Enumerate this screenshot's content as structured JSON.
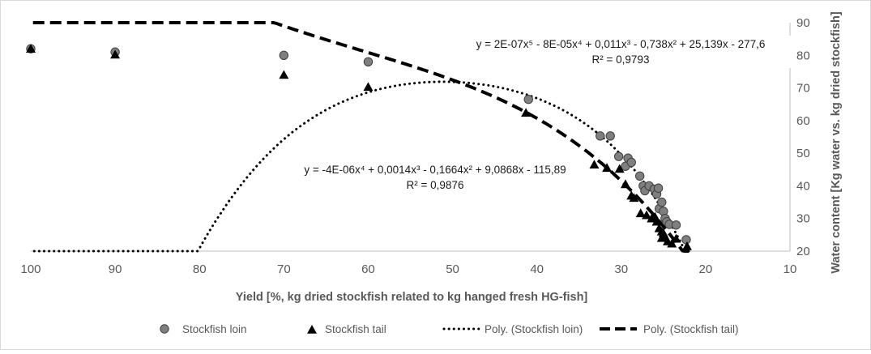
{
  "chart_data": {
    "type": "scatter",
    "xlabel": "Yield [%, kg dried stockfish related to kg hanged fresh HG-fish]",
    "ylabel": "Water content [Kg water vs. kg dried stockfish]",
    "xlim": [
      10,
      100
    ],
    "x_reversed": true,
    "ylim": [
      20,
      90
    ],
    "x_ticks": [
      "100",
      "90",
      "80",
      "70",
      "60",
      "50",
      "40",
      "30",
      "20",
      "10"
    ],
    "y_ticks": [
      "90",
      "80",
      "70",
      "60",
      "50",
      "40",
      "30",
      "20"
    ],
    "grid": false,
    "legend_position": "bottom",
    "series": [
      {
        "name": "Stockfish loin",
        "marker": "circle",
        "color": "#7f7f7f",
        "points": [
          [
            100,
            82
          ],
          [
            90,
            81
          ],
          [
            70,
            80
          ],
          [
            60,
            78
          ],
          [
            41,
            66.5
          ],
          [
            32.5,
            55.3
          ],
          [
            31.3,
            55.3
          ],
          [
            30.3,
            49
          ],
          [
            29.5,
            46
          ],
          [
            29.2,
            48.5
          ],
          [
            28.8,
            47.2
          ],
          [
            27.8,
            43
          ],
          [
            27.4,
            40
          ],
          [
            27.2,
            38.5
          ],
          [
            26.7,
            40
          ],
          [
            26.1,
            39
          ],
          [
            25.8,
            37.5
          ],
          [
            25.6,
            39.3
          ],
          [
            25.5,
            33
          ],
          [
            25.2,
            35
          ],
          [
            25,
            32.2
          ],
          [
            24.8,
            30
          ],
          [
            24.6,
            29
          ],
          [
            24.3,
            28.2
          ],
          [
            23.5,
            28
          ],
          [
            22.3,
            23.5
          ]
        ]
      },
      {
        "name": "Stockfish tail",
        "marker": "triangle",
        "color": "#000000",
        "points": [
          [
            100,
            82
          ],
          [
            90,
            80.2
          ],
          [
            70,
            74
          ],
          [
            60,
            70.3
          ],
          [
            41.3,
            62.4
          ],
          [
            33.2,
            46.5
          ],
          [
            31.7,
            45.5
          ],
          [
            30.2,
            45.2
          ],
          [
            29.5,
            40.5
          ],
          [
            28.8,
            37
          ],
          [
            28.5,
            36.3
          ],
          [
            27.7,
            31.6
          ],
          [
            27,
            31
          ],
          [
            26.4,
            30
          ],
          [
            26,
            30.5
          ],
          [
            25.8,
            29
          ],
          [
            25.5,
            27
          ],
          [
            25.2,
            26
          ],
          [
            25.2,
            24
          ],
          [
            25,
            25.5
          ],
          [
            24.8,
            24.2
          ],
          [
            24.5,
            23
          ],
          [
            24,
            22.3
          ],
          [
            23.5,
            23.8
          ],
          [
            22.2,
            21.5
          ]
        ]
      },
      {
        "name": "Poly. (Stockfish loin)",
        "line": "dotted",
        "color": "#000000",
        "coefficients": [
          2e-07,
          -8e-05,
          0.011,
          -0.738,
          25.139,
          -277.6
        ]
      },
      {
        "name": "Poly. (Stockfish tail)",
        "line": "dashed",
        "color": "#000000",
        "coefficients": [
          -4e-06,
          0.0014,
          -0.1664,
          9.0868,
          -115.89
        ]
      }
    ],
    "annotations": [
      {
        "equation": "y = 2E-07x⁵ - 8E-05x⁴ + 0,011x³ - 0,738x² + 25,139x - 277,6",
        "r2": "R² = 0,9793"
      },
      {
        "equation": "y = -4E-06x⁴ + 0,0014x³ - 0,1664x² + 9,0868x - 115,89",
        "r2": "R² = 0,9876"
      }
    ]
  }
}
